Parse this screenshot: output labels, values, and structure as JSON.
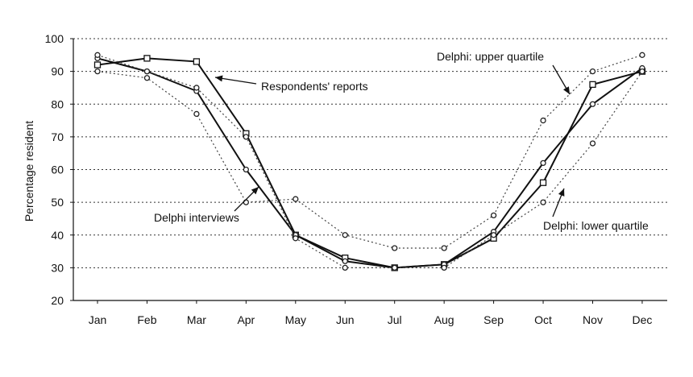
{
  "chart_data": {
    "type": "line",
    "title": "",
    "xlabel": "",
    "ylabel": "Percentage resident",
    "categories": [
      "Jan",
      "Feb",
      "Mar",
      "Apr",
      "May",
      "Jun",
      "Jul",
      "Aug",
      "Sep",
      "Oct",
      "Nov",
      "Dec"
    ],
    "ylim": [
      20,
      100
    ],
    "yticks": [
      20,
      30,
      40,
      50,
      60,
      70,
      80,
      90,
      100
    ],
    "grid": "horizontal dotted",
    "series": [
      {
        "values": [
          92,
          94,
          93,
          71,
          40,
          33,
          30,
          31,
          39,
          56,
          86,
          90
        ]
      },
      {
        "values": [
          94,
          90,
          84,
          60,
          40,
          32,
          30,
          31,
          41,
          62,
          80,
          91
        ]
      },
      {
        "values": [
          95,
          90,
          85,
          70,
          39,
          30,
          30,
          30,
          40,
          50,
          68,
          90
        ]
      },
      {
        "values": [
          90,
          88,
          77,
          50,
          51,
          40,
          36,
          36,
          46,
          75,
          90,
          95
        ]
      }
    ],
    "annotations": [
      {
        "text": "Respondents' reports",
        "target_category": "Mar"
      },
      {
        "text": "Delphi interviews",
        "target_category": "Apr"
      },
      {
        "text": "Delphi: upper quartile",
        "target_category": "Oct"
      },
      {
        "text": "Delphi: lower quartile",
        "target_category": "Oct"
      }
    ]
  }
}
